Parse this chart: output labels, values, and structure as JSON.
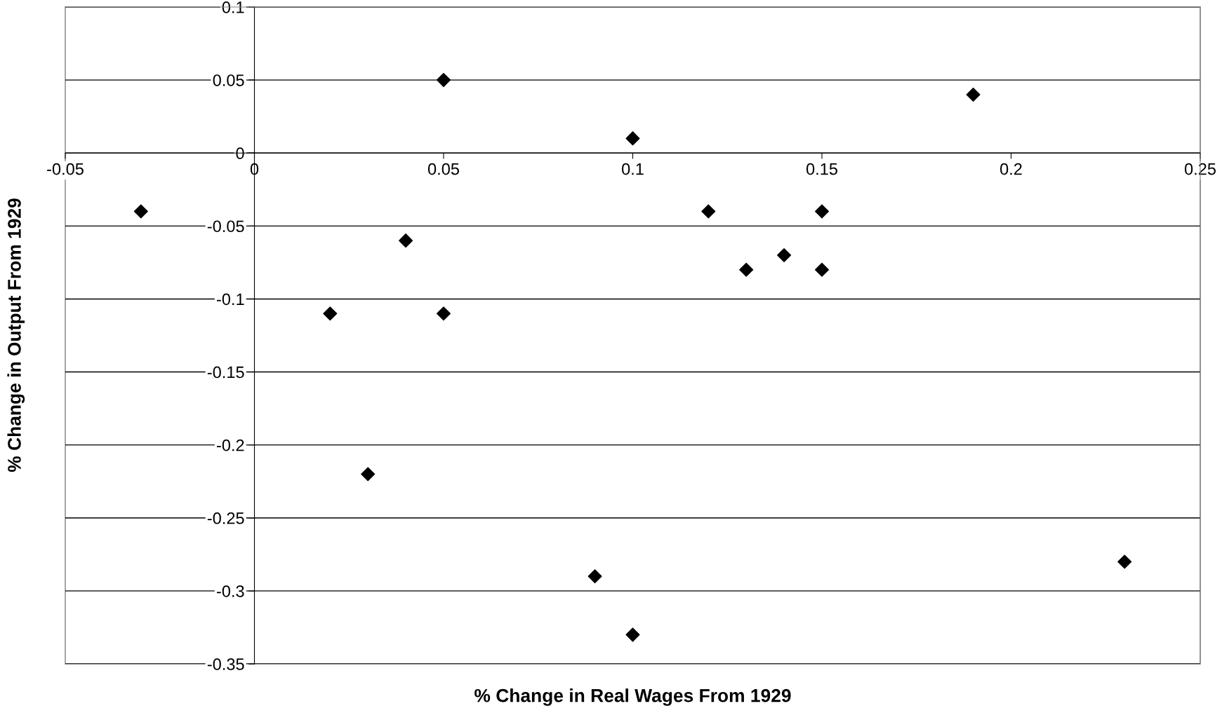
{
  "chart_data": {
    "type": "scatter",
    "xlabel": "% Change in Real Wages From 1929",
    "ylabel": "% Change in Output From 1929",
    "x": [
      -0.03,
      0.02,
      0.03,
      0.04,
      0.05,
      0.05,
      0.09,
      0.1,
      0.1,
      0.12,
      0.13,
      0.14,
      0.15,
      0.15,
      0.19,
      0.23
    ],
    "series": [
      {
        "color": "#000000",
        "values": [
          -0.04,
          -0.11,
          -0.22,
          -0.06,
          0.05,
          -0.11,
          -0.29,
          0.01,
          -0.33,
          -0.04,
          -0.08,
          -0.07,
          -0.04,
          -0.08,
          0.04,
          -0.28
        ]
      }
    ],
    "xlim": [
      -0.05,
      0.25
    ],
    "xticks": [
      {
        "value": -0.05,
        "label": "-0.05"
      },
      0,
      0.05,
      0.1,
      0.15,
      0.2,
      0.25
    ],
    "ylim": [
      -0.35,
      0.1
    ],
    "yticks": [
      {
        "value": -0.35,
        "label": "-0.35"
      },
      {
        "value": -0.3,
        "label": "-0.3"
      },
      {
        "value": -0.25,
        "label": "-0.25"
      },
      {
        "value": -0.2,
        "label": "-0.2"
      },
      {
        "value": -0.15,
        "label": "-0.15"
      },
      {
        "value": -0.1,
        "label": "-0.1"
      },
      {
        "value": -0.05,
        "label": "-0.05"
      },
      0,
      0.05,
      0.1
    ],
    "grid": "y",
    "marker": "diamond",
    "legend": false
  }
}
